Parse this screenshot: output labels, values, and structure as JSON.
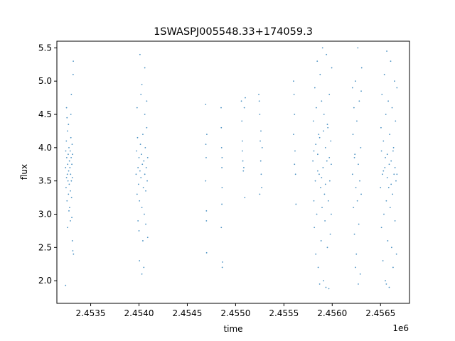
{
  "chart_data": {
    "type": "scatter",
    "title": "1SWASPJ005548.33+174059.3",
    "xlabel": "time",
    "ylabel": "flux",
    "x_offset_label": "1e6",
    "xlim": [
      2453150,
      2456800
    ],
    "ylim": [
      1.66,
      5.6
    ],
    "x_ticks": [
      2453500,
      2454000,
      2454500,
      2455000,
      2455500,
      2456000,
      2456500
    ],
    "x_tick_labels": [
      "2.4535",
      "2.4540",
      "2.4545",
      "2.4550",
      "2.4555",
      "2.4560",
      "2.4565"
    ],
    "y_ticks": [
      2.0,
      2.5,
      3.0,
      3.5,
      4.0,
      4.5,
      5.0,
      5.5
    ],
    "y_tick_labels": [
      "2.0",
      "2.5",
      "3.0",
      "3.5",
      "4.0",
      "4.5",
      "5.0",
      "5.5"
    ],
    "grid": false,
    "color": "#1f77b4",
    "series": [
      {
        "values": [
          [
            2453240,
            3.7
          ],
          [
            2453242,
            3.95
          ],
          [
            2453245,
            3.4
          ],
          [
            2453248,
            4.1
          ],
          [
            2453250,
            3.55
          ],
          [
            2453252,
            3.85
          ],
          [
            2453255,
            3.2
          ],
          [
            2453258,
            3.6
          ],
          [
            2453260,
            4.25
          ],
          [
            2453262,
            3.75
          ],
          [
            2453265,
            3.5
          ],
          [
            2453267,
            3.9
          ],
          [
            2453270,
            3.3
          ],
          [
            2453272,
            3.65
          ],
          [
            2453275,
            4.0
          ],
          [
            2453278,
            3.45
          ],
          [
            2453280,
            3.8
          ],
          [
            2453282,
            3.1
          ],
          [
            2453285,
            3.7
          ],
          [
            2453288,
            3.95
          ],
          [
            2453290,
            3.35
          ],
          [
            2453292,
            3.6
          ],
          [
            2453295,
            4.15
          ],
          [
            2453298,
            3.85
          ],
          [
            2453300,
            3.5
          ],
          [
            2453302,
            3.25
          ],
          [
            2453305,
            3.75
          ],
          [
            2453308,
            4.05
          ],
          [
            2453310,
            3.55
          ],
          [
            2453312,
            3.9
          ],
          [
            2453250,
            4.6
          ],
          [
            2453260,
            2.8
          ],
          [
            2453270,
            4.35
          ],
          [
            2453290,
            2.9
          ],
          [
            2453300,
            4.8
          ],
          [
            2453310,
            2.6
          ],
          [
            2453320,
            5.3
          ],
          [
            2453318,
            5.1
          ],
          [
            2453322,
            2.4
          ],
          [
            2453315,
            2.45
          ],
          [
            2453240,
            1.93
          ],
          [
            2453255,
            4.45
          ],
          [
            2453275,
            3.05
          ],
          [
            2453295,
            4.5
          ],
          [
            2453305,
            2.95
          ],
          [
            2453970,
            3.6
          ],
          [
            2453975,
            3.95
          ],
          [
            2453980,
            3.3
          ],
          [
            2453985,
            4.15
          ],
          [
            2453990,
            3.7
          ],
          [
            2453995,
            3.45
          ],
          [
            2454000,
            3.85
          ],
          [
            2454005,
            3.2
          ],
          [
            2454010,
            3.65
          ],
          [
            2454015,
            4.05
          ],
          [
            2454020,
            3.55
          ],
          [
            2454025,
            3.9
          ],
          [
            2454030,
            3.1
          ],
          [
            2454035,
            3.75
          ],
          [
            2454040,
            4.2
          ],
          [
            2454045,
            3.4
          ],
          [
            2454050,
            3.8
          ],
          [
            2454055,
            3.0
          ],
          [
            2454060,
            3.6
          ],
          [
            2454065,
            4.0
          ],
          [
            2454070,
            3.35
          ],
          [
            2454075,
            3.7
          ],
          [
            2454080,
            4.3
          ],
          [
            2454085,
            3.5
          ],
          [
            2454090,
            3.85
          ],
          [
            2453980,
            4.6
          ],
          [
            2454000,
            2.75
          ],
          [
            2454020,
            4.8
          ],
          [
            2454040,
            2.6
          ],
          [
            2454060,
            4.5
          ],
          [
            2454010,
            5.4
          ],
          [
            2454030,
            4.95
          ],
          [
            2454070,
            2.85
          ],
          [
            2454005,
            2.3
          ],
          [
            2454030,
            2.1
          ],
          [
            2454050,
            2.2
          ],
          [
            2454080,
            4.7
          ],
          [
            2453990,
            2.9
          ],
          [
            2454090,
            2.65
          ],
          [
            2454060,
            5.2
          ],
          [
            2454690,
            4.65
          ],
          [
            2454692,
            4.05
          ],
          [
            2454695,
            3.85
          ],
          [
            2454698,
            2.9
          ],
          [
            2454700,
            2.42
          ],
          [
            2454702,
            4.2
          ],
          [
            2454690,
            3.5
          ],
          [
            2454698,
            3.05
          ],
          [
            2454850,
            4.6
          ],
          [
            2454852,
            4.3
          ],
          [
            2454855,
            4.0
          ],
          [
            2454858,
            3.7
          ],
          [
            2454860,
            3.4
          ],
          [
            2454862,
            2.2
          ],
          [
            2454865,
            2.28
          ],
          [
            2454852,
            2.8
          ],
          [
            2454858,
            3.15
          ],
          [
            2454860,
            3.85
          ],
          [
            2455060,
            4.7
          ],
          [
            2455065,
            4.4
          ],
          [
            2455070,
            4.1
          ],
          [
            2455075,
            3.8
          ],
          [
            2455080,
            3.65
          ],
          [
            2455085,
            3.7
          ],
          [
            2455090,
            4.6
          ],
          [
            2455095,
            3.25
          ],
          [
            2455100,
            4.75
          ],
          [
            2455070,
            3.95
          ],
          [
            2455240,
            4.8
          ],
          [
            2455245,
            4.7
          ],
          [
            2455250,
            4.5
          ],
          [
            2455255,
            4.1
          ],
          [
            2455260,
            3.8
          ],
          [
            2455265,
            3.6
          ],
          [
            2455270,
            3.4
          ],
          [
            2455275,
            4.0
          ],
          [
            2455250,
            3.3
          ],
          [
            2455262,
            4.25
          ],
          [
            2455600,
            5.0
          ],
          [
            2455605,
            4.8
          ],
          [
            2455610,
            4.5
          ],
          [
            2455615,
            3.95
          ],
          [
            2455620,
            3.6
          ],
          [
            2455625,
            3.15
          ],
          [
            2455600,
            4.2
          ],
          [
            2455610,
            3.75
          ],
          [
            2455800,
            3.8
          ],
          [
            2455805,
            4.4
          ],
          [
            2455810,
            3.2
          ],
          [
            2455815,
            2.8
          ],
          [
            2455820,
            4.9
          ],
          [
            2455825,
            3.5
          ],
          [
            2455830,
            2.4
          ],
          [
            2455835,
            4.6
          ],
          [
            2455840,
            3.0
          ],
          [
            2455845,
            5.3
          ],
          [
            2455850,
            3.9
          ],
          [
            2455855,
            2.2
          ],
          [
            2455860,
            4.2
          ],
          [
            2455865,
            3.6
          ],
          [
            2455870,
            1.95
          ],
          [
            2455875,
            5.1
          ],
          [
            2455880,
            3.4
          ],
          [
            2455885,
            2.6
          ],
          [
            2455890,
            4.7
          ],
          [
            2455895,
            3.1
          ],
          [
            2455900,
            5.5
          ],
          [
            2455905,
            3.7
          ],
          [
            2455910,
            2.0
          ],
          [
            2455915,
            4.5
          ],
          [
            2455920,
            3.3
          ],
          [
            2455925,
            2.9
          ],
          [
            2455930,
            4.0
          ],
          [
            2455935,
            1.9
          ],
          [
            2455940,
            5.4
          ],
          [
            2455945,
            3.8
          ],
          [
            2455950,
            2.5
          ],
          [
            2455955,
            4.3
          ],
          [
            2455960,
            3.2
          ],
          [
            2455965,
            1.88
          ],
          [
            2455970,
            4.8
          ],
          [
            2455975,
            3.5
          ],
          [
            2455980,
            2.7
          ],
          [
            2455985,
            4.1
          ],
          [
            2455990,
            3.0
          ],
          [
            2455995,
            5.2
          ],
          [
            2455810,
            3.95
          ],
          [
            2455830,
            4.05
          ],
          [
            2455850,
            3.65
          ],
          [
            2455870,
            4.15
          ],
          [
            2455890,
            3.55
          ],
          [
            2455910,
            4.25
          ],
          [
            2455930,
            3.45
          ],
          [
            2455950,
            4.35
          ],
          [
            2455970,
            3.85
          ],
          [
            2455990,
            3.75
          ],
          [
            2456210,
            3.6
          ],
          [
            2456215,
            4.2
          ],
          [
            2456220,
            3.1
          ],
          [
            2456225,
            4.6
          ],
          [
            2456230,
            2.7
          ],
          [
            2456235,
            3.9
          ],
          [
            2456240,
            5.0
          ],
          [
            2456245,
            3.4
          ],
          [
            2456250,
            2.4
          ],
          [
            2456255,
            4.4
          ],
          [
            2456260,
            3.2
          ],
          [
            2456265,
            5.5
          ],
          [
            2456270,
            3.75
          ],
          [
            2456275,
            2.85
          ],
          [
            2456280,
            4.7
          ],
          [
            2456285,
            3.5
          ],
          [
            2456290,
            2.1
          ],
          [
            2456295,
            4.0
          ],
          [
            2456300,
            3.3
          ],
          [
            2456305,
            5.2
          ],
          [
            2456210,
            4.9
          ],
          [
            2456240,
            2.2
          ],
          [
            2456270,
            1.95
          ],
          [
            2456300,
            4.85
          ],
          [
            2456230,
            3.85
          ],
          [
            2456500,
            3.4
          ],
          [
            2456505,
            4.3
          ],
          [
            2456510,
            2.8
          ],
          [
            2456515,
            4.8
          ],
          [
            2456520,
            3.6
          ],
          [
            2456525,
            2.3
          ],
          [
            2456530,
            4.1
          ],
          [
            2456535,
            3.0
          ],
          [
            2456540,
            5.1
          ],
          [
            2456545,
            3.7
          ],
          [
            2456550,
            2.0
          ],
          [
            2456555,
            4.5
          ],
          [
            2456560,
            3.2
          ],
          [
            2456565,
            5.45
          ],
          [
            2456570,
            3.9
          ],
          [
            2456575,
            2.6
          ],
          [
            2456580,
            4.7
          ],
          [
            2456585,
            3.4
          ],
          [
            2456590,
            1.9
          ],
          [
            2456595,
            4.2
          ],
          [
            2456600,
            3.1
          ],
          [
            2456605,
            5.3
          ],
          [
            2456610,
            3.8
          ],
          [
            2456615,
            2.5
          ],
          [
            2456620,
            4.6
          ],
          [
            2456625,
            3.3
          ],
          [
            2456630,
            2.2
          ],
          [
            2456635,
            4.0
          ],
          [
            2456640,
            3.6
          ],
          [
            2456645,
            5.0
          ],
          [
            2456650,
            2.9
          ],
          [
            2456655,
            4.4
          ],
          [
            2456660,
            3.5
          ],
          [
            2456665,
            2.4
          ],
          [
            2456670,
            4.9
          ],
          [
            2456510,
            3.95
          ],
          [
            2456530,
            3.65
          ],
          [
            2456550,
            3.85
          ],
          [
            2456570,
            3.55
          ],
          [
            2456590,
            3.75
          ],
          [
            2456610,
            3.45
          ],
          [
            2456630,
            3.95
          ],
          [
            2456650,
            3.7
          ],
          [
            2456670,
            3.6
          ],
          [
            2456560,
            1.95
          ]
        ]
      }
    ]
  }
}
